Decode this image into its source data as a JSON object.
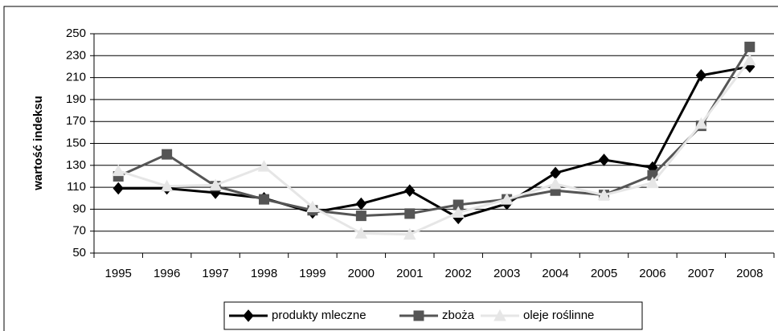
{
  "chart_data": {
    "type": "line",
    "y_label": "wartość indeksu",
    "categories": [
      "1995",
      "1996",
      "1997",
      "1998",
      "1999",
      "2000",
      "2001",
      "2002",
      "2003",
      "2004",
      "2005",
      "2006",
      "2007",
      "2008"
    ],
    "series": [
      {
        "name": "produkty mleczne",
        "color": "#000000",
        "marker": "diamond",
        "values": [
          109,
          109,
          105,
          100,
          87,
          95,
          107,
          82,
          95,
          123,
          135,
          128,
          212,
          220
        ]
      },
      {
        "name": "zboża",
        "color": "#555555",
        "marker": "square",
        "values": [
          120,
          140,
          111,
          99,
          89,
          84,
          86,
          94,
          99,
          107,
          103,
          121,
          166,
          238
        ]
      },
      {
        "name": "oleje roślinne",
        "color": "#e6e6e6",
        "marker": "triangle",
        "values": [
          125,
          111,
          112,
          129,
          92,
          68,
          67,
          87,
          99,
          113,
          103,
          114,
          168,
          226
        ]
      }
    ],
    "ylim": [
      50,
      250
    ],
    "yticks": [
      50,
      70,
      90,
      110,
      130,
      150,
      170,
      190,
      210,
      230,
      250
    ],
    "grid": true
  }
}
